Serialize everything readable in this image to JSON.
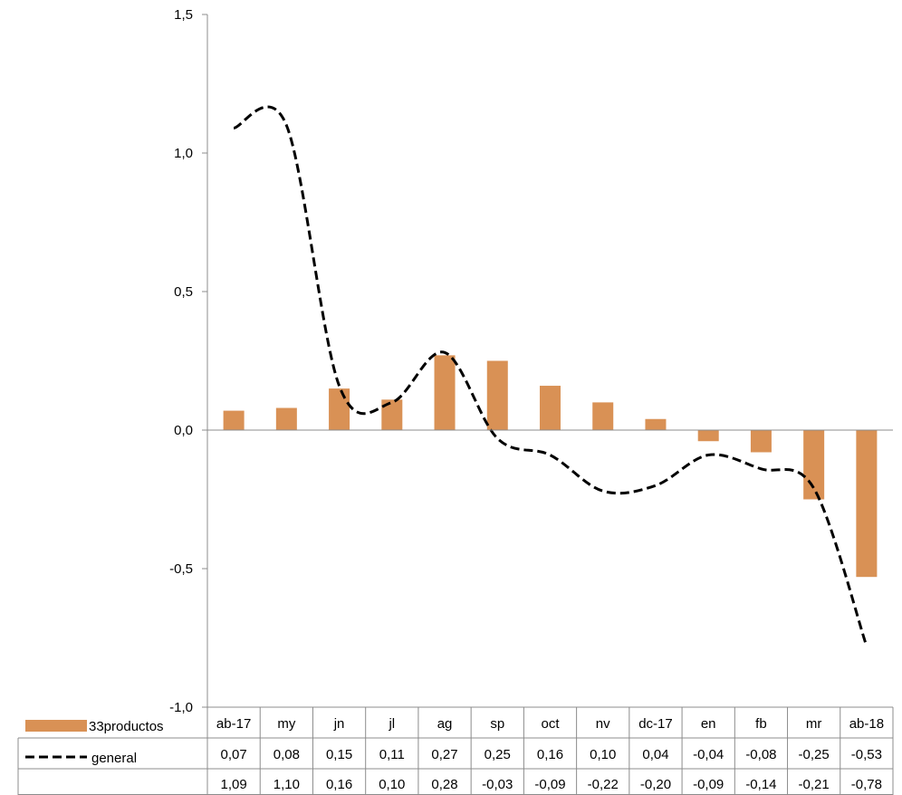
{
  "chart_data": {
    "type": "bar",
    "title": "",
    "xlabel": "",
    "ylabel": "",
    "ylim": [
      -1.0,
      1.5
    ],
    "yticks": [
      1.5,
      1.0,
      0.5,
      0.0,
      -0.5,
      -1.0
    ],
    "ytick_labels": [
      "1,5",
      "1,0",
      "0,5",
      "0,0",
      "-0,5",
      "-1,0"
    ],
    "grid": false,
    "legend": "data-table-left",
    "categories": [
      "ab-17",
      "my",
      "jn",
      "jl",
      "ag",
      "sp",
      "oct",
      "nv",
      "dc-17",
      "en",
      "fb",
      "mr",
      "ab-18"
    ],
    "series": [
      {
        "name": "33productos",
        "type": "bar",
        "color": "#D99155",
        "values": [
          0.07,
          0.08,
          0.15,
          0.11,
          0.27,
          0.25,
          0.16,
          0.1,
          0.04,
          -0.04,
          -0.08,
          -0.25,
          -0.53
        ],
        "labels": [
          "0,07",
          "0,08",
          "0,15",
          "0,11",
          "0,27",
          "0,25",
          "0,16",
          "0,10",
          "0,04",
          "-0,04",
          "-0,08",
          "-0,25",
          "-0,53"
        ]
      },
      {
        "name": "general",
        "type": "line",
        "style": "dashed",
        "color": "#000000",
        "values": [
          1.09,
          1.1,
          0.16,
          0.1,
          0.28,
          -0.03,
          -0.09,
          -0.22,
          -0.2,
          -0.09,
          -0.14,
          -0.21,
          -0.78
        ],
        "labels": [
          "1,09",
          "1,10",
          "0,16",
          "0,10",
          "0,28",
          "-0,03",
          "-0,09",
          "-0,22",
          "-0,20",
          "-0,09",
          "-0,14",
          "-0,21",
          "-0,78"
        ]
      }
    ]
  }
}
